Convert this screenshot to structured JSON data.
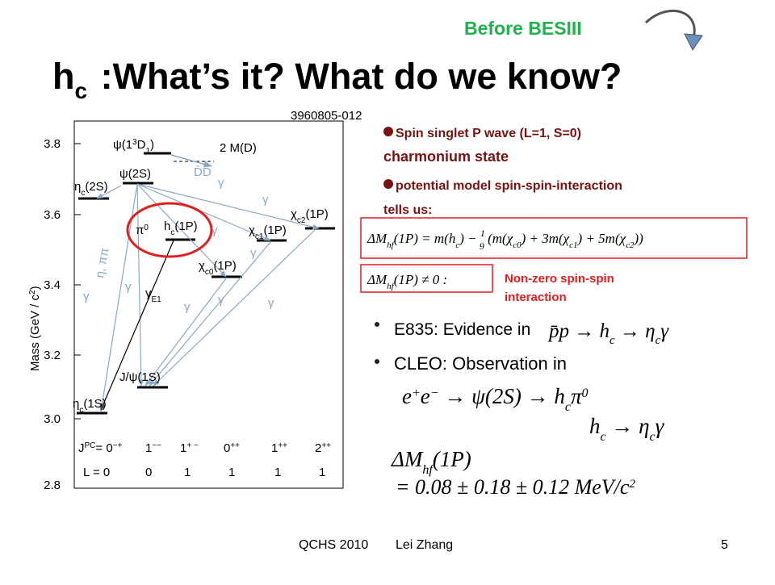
{
  "header": {
    "tag": "Before BESIII",
    "title": [
      "h",
      "c",
      " :What’s it? What do we know?"
    ]
  },
  "diagram": {
    "code": "3960805-012",
    "y_axis": [
      "Mass (GeV / c",
      "2",
      ")"
    ],
    "y_ticks": [
      "3.8",
      "3.6",
      "3.4",
      "3.2",
      "3.0",
      "2.8"
    ],
    "levels": [
      [
        "ψ(1",
        "3",
        "D",
        "1",
        ")"
      ],
      [
        "2 M(D)"
      ],
      [
        "D̄D̄"
      ],
      [
        "η",
        "c",
        "(2S)"
      ],
      [
        "ψ(2S)"
      ],
      [
        "π",
        "0"
      ],
      [
        "h",
        "c",
        "(1P)"
      ],
      [
        "χ",
        "c2",
        "(1P)"
      ],
      [
        "χ",
        "c1",
        "(1P)"
      ],
      [
        "χ",
        "c0",
        "(1P)"
      ],
      [
        "J/ψ(1S)"
      ],
      [
        "η",
        "c",
        "(1S)"
      ]
    ],
    "transitions": {
      "hadronic": "η, ππ",
      "e1": [
        "γ",
        "E1"
      ],
      "gammas": [
        "γ",
        "γ",
        "γ",
        "γ",
        "γ",
        "γ",
        "γ",
        "γ",
        "γ"
      ]
    },
    "jpc": [
      "J",
      "PC",
      "= 0",
      "−+",
      "1",
      "−−",
      "1",
      "+ −",
      "0",
      "++",
      "1",
      "++",
      "2",
      "++"
    ],
    "l_row": [
      "L = 0",
      "0",
      "1",
      "1",
      "1",
      "1"
    ]
  },
  "bullets": [
    "Spin singlet P wave (L=1, S=0)",
    "charmonium state",
    "potential model spin-spin-interaction",
    "tells us:"
  ],
  "formula1": [
    "ΔM",
    "hf",
    "(1P) = m(h",
    "c",
    ") − ",
    "1",
    "9",
    " (m(χ",
    "c0",
    ") + 3m(χ",
    "c1",
    ") + 5m(χ",
    "c2",
    "))"
  ],
  "formula2": [
    "ΔM",
    "hf",
    "(1P) ≠ 0 :"
  ],
  "note": [
    "Non-zero spin-spin",
    "interaction"
  ],
  "e835": {
    "text": "E835: Evidence in",
    "formula": [
      "p̄p → h",
      "c",
      " → η",
      "c",
      "γ"
    ]
  },
  "cleo": {
    "text": "CLEO: Observation in",
    "line1": [
      "e",
      "+",
      "e",
      "−",
      " → ψ(2S) → h",
      "c",
      "π",
      "0"
    ],
    "line2": [
      "h",
      "c",
      " → η",
      "c",
      "γ"
    ],
    "line3": [
      "ΔM",
      "hf",
      "(1P)"
    ],
    "line4": [
      "= 0.08 ± 0.18 ± 0.12 MeV/c",
      "2"
    ]
  },
  "footer": [
    "QCHS 2010",
    "Lei Zhang",
    "5"
  ]
}
